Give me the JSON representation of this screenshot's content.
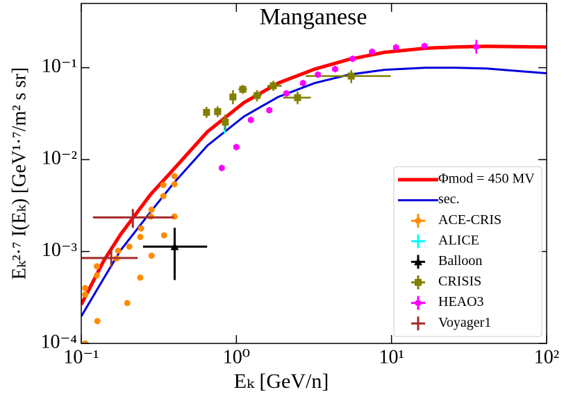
{
  "chart_data": {
    "type": "line",
    "title": "Manganese",
    "xlabel": "Eₖ [GeV/n]",
    "ylabel": "Eₖ²·⁷ I(Eₖ) [GeV¹·⁷/m² s sr]",
    "xscale": "log",
    "yscale": "log",
    "xlim": [
      0.1,
      100
    ],
    "ylim": [
      0.0001,
      0.5
    ],
    "xticks": [
      {
        "value": 0.1,
        "label": "10⁻¹"
      },
      {
        "value": 1,
        "label": "10⁰"
      },
      {
        "value": 10,
        "label": "10¹"
      },
      {
        "value": 100,
        "label": "10²"
      }
    ],
    "yticks": [
      {
        "value": 0.0001,
        "label": "10⁻⁴"
      },
      {
        "value": 0.001,
        "label": "10⁻³"
      },
      {
        "value": 0.01,
        "label": "10⁻²"
      },
      {
        "value": 0.1,
        "label": "10⁻¹"
      }
    ],
    "legend": "lower right",
    "series": [
      {
        "name": "Φmod = 450 MV",
        "type": "line",
        "color": "#ff0000",
        "x": [
          0.1,
          0.14,
          0.18,
          0.28,
          0.39,
          0.65,
          1.12,
          1.86,
          3.2,
          5.3,
          9,
          16.6,
          25.6,
          41,
          100
        ],
        "values": [
          0.000265,
          0.0008,
          0.00155,
          0.00418,
          0.0077,
          0.0201,
          0.0418,
          0.068,
          0.0966,
          0.123,
          0.147,
          0.163,
          0.168,
          0.171,
          0.168
        ]
      },
      {
        "name": "sec.",
        "type": "line",
        "color": "#0000dd",
        "x": [
          0.1,
          0.14,
          0.18,
          0.28,
          0.39,
          0.65,
          1.12,
          1.86,
          3.2,
          5.3,
          9,
          16.6,
          25.6,
          41,
          100
        ],
        "values": [
          0.000197,
          0.000515,
          0.00104,
          0.0027,
          0.00543,
          0.0142,
          0.0295,
          0.0481,
          0.0681,
          0.084,
          0.0948,
          0.1,
          0.1,
          0.098,
          0.087
        ]
      },
      {
        "name": "ACE-CRIS",
        "type": "scatter",
        "marker": "circle",
        "color": "#ff8c00",
        "x": [
          0.106,
          0.106,
          0.106,
          0.126,
          0.126,
          0.127,
          0.169,
          0.173,
          0.198,
          0.204,
          0.24,
          0.243,
          0.24,
          0.281,
          0.284,
          0.284,
          0.338,
          0.338,
          0.342,
          0.399,
          0.399,
          0.399
        ],
        "values": [
          0.0001,
          0.0004,
          0.00034,
          0.00055,
          0.00069,
          0.000175,
          0.00084,
          0.00102,
          0.000275,
          0.00113,
          0.00144,
          0.00178,
          0.00052,
          0.0024,
          0.00285,
          0.0009,
          0.0053,
          0.004,
          0.0015,
          0.0024,
          0.0054,
          0.0066
        ]
      },
      {
        "name": "ALICE",
        "type": "scatter",
        "marker": "none",
        "color": "#00ffff",
        "x": [
          0.84
        ],
        "values": [
          0.0227
        ],
        "y_lo": [
          0.0194
        ],
        "y_hi": [
          0.0275
        ]
      },
      {
        "name": "Balloon",
        "type": "scatter",
        "marker": "triangle",
        "color": "#000000",
        "x": [
          0.4
        ],
        "values": [
          0.00113
        ],
        "x_lo": [
          0.25
        ],
        "x_hi": [
          0.648
        ],
        "y_lo": [
          0.00049
        ],
        "y_hi": [
          0.00181
        ]
      },
      {
        "name": "CRISIS",
        "type": "scatter",
        "marker": "square",
        "color": "#808000",
        "x": [
          0.642,
          0.757,
          0.848,
          0.95,
          1.1,
          1.36,
          1.73,
          2.48,
          5.5
        ],
        "values": [
          0.0327,
          0.0333,
          0.0256,
          0.0481,
          0.0582,
          0.0498,
          0.0635,
          0.0472,
          0.0811
        ],
        "x_lo": [
          0.61,
          0.72,
          0.82,
          0.92,
          1.03,
          1.27,
          1.58,
          2.0,
          2.8
        ],
        "x_hi": [
          0.675,
          0.8,
          0.88,
          0.98,
          1.17,
          1.45,
          1.96,
          3.02,
          9.9
        ],
        "y_lo": [
          0.0285,
          0.029,
          0.021,
          0.04,
          0.052,
          0.043,
          0.056,
          0.04,
          0.068
        ],
        "y_hi": [
          0.0375,
          0.038,
          0.031,
          0.057,
          0.065,
          0.057,
          0.072,
          0.055,
          0.094
        ]
      },
      {
        "name": "HEAO3",
        "type": "scatter",
        "marker": "hexagon",
        "color": "#ff00ff",
        "x": [
          0.805,
          1.0,
          1.24,
          1.63,
          2.1,
          2.69,
          3.35,
          4.33,
          5.61,
          7.49,
          10.7,
          16.3,
          35.2
        ],
        "values": [
          0.0081,
          0.0137,
          0.027,
          0.0345,
          0.0525,
          0.068,
          0.084,
          0.0966,
          0.125,
          0.149,
          0.166,
          0.172,
          0.169
        ],
        "y_lo": [
          null,
          null,
          null,
          null,
          null,
          null,
          null,
          null,
          null,
          null,
          null,
          null,
          0.142
        ],
        "y_hi": [
          null,
          null,
          null,
          null,
          null,
          null,
          null,
          null,
          null,
          null,
          null,
          null,
          0.201
        ]
      },
      {
        "name": "Voyager1",
        "type": "scatter",
        "marker": "none",
        "color": "#a52a2a",
        "x": [
          0.156,
          0.215
        ],
        "values": [
          0.00085,
          0.00235
        ],
        "x_lo": [
          0.1,
          0.119
        ],
        "x_hi": [
          0.231,
          0.394
        ],
        "y_lo": [
          0.00067,
          0.00181
        ],
        "y_hi": [
          0.00107,
          0.0029
        ]
      }
    ]
  }
}
